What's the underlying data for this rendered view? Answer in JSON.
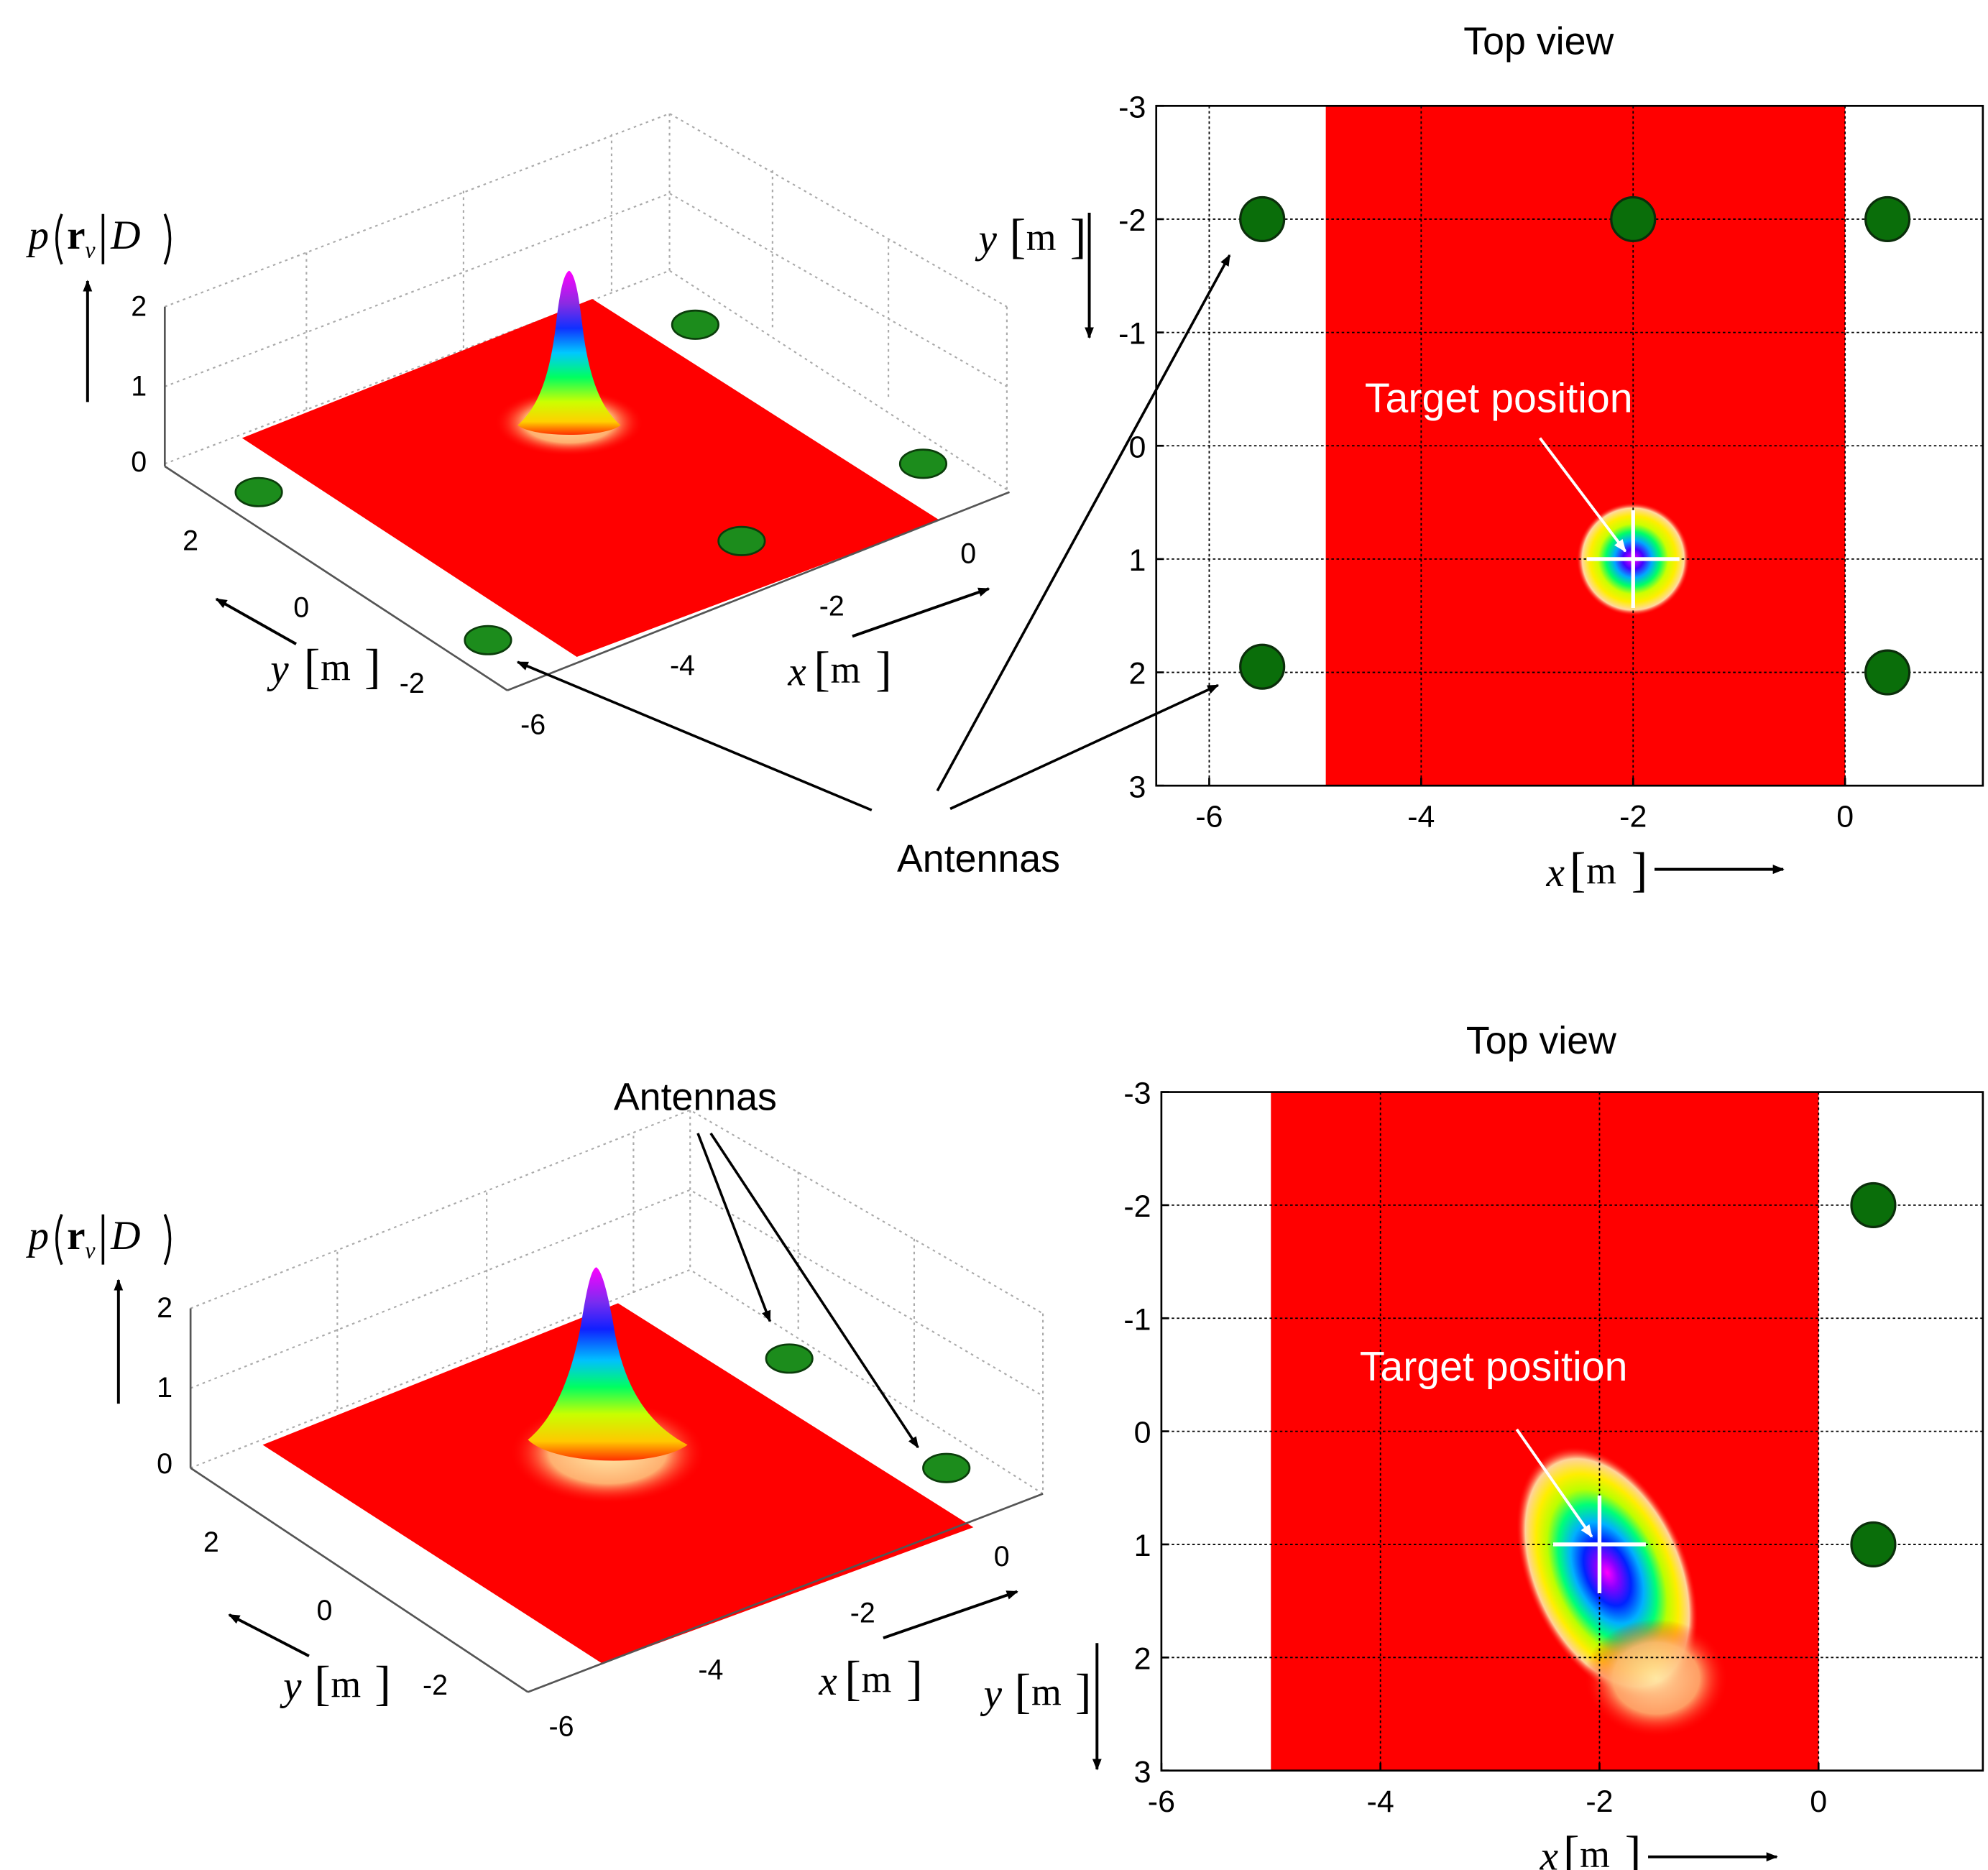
{
  "colors": {
    "plane": "#ff0000",
    "antenna_fill": "#0a6e0a",
    "antenna_fill_3d": "#1c8c1c",
    "grid": "#000000",
    "axis": "#000000",
    "crosshair": "#ffffff"
  },
  "labels": {
    "antennas": "Antennas",
    "target_position": "Target position",
    "top_view": "Top view",
    "p_prefix": "p",
    "p_bold": "r",
    "p_sub": "v",
    "p_given": "D",
    "x_var": "x",
    "y_var": "y",
    "unit": "m"
  },
  "chart_data": [
    {
      "type": "surface3d",
      "panel": "top-left",
      "zlabel": "p(rv|D)",
      "xlabel": "x [m]",
      "ylabel": "y [m]",
      "z_ticks": [
        "0",
        "1",
        "2"
      ],
      "x_ticks": [
        "-6",
        "-4",
        "-2",
        "0"
      ],
      "y_ticks": [
        "2",
        "0",
        "-2"
      ],
      "xlim": [
        -6,
        0
      ],
      "ylim": [
        -3,
        3
      ],
      "zlim": [
        0,
        2
      ],
      "peak": {
        "x": -2,
        "y": 1,
        "z": 2
      },
      "antennas": [
        {
          "x": -5.5,
          "y": -2
        },
        {
          "x": -2,
          "y": -2
        },
        {
          "x": 0.4,
          "y": -2
        },
        {
          "x": -5.5,
          "y": 2
        },
        {
          "x": 0.4,
          "y": 2
        }
      ]
    },
    {
      "type": "heatmap",
      "panel": "top-right",
      "title": "Top view",
      "xlabel": "x [m]",
      "ylabel": "y [m]",
      "xlim": [
        -6.5,
        1.3
      ],
      "ylim": [
        -3,
        3
      ],
      "x_ticks": [
        -6,
        -4,
        -2,
        0
      ],
      "y_ticks": [
        -3,
        -2,
        -1,
        0,
        1,
        2,
        3
      ],
      "y_tick_labels": [
        "-3",
        "-2",
        "-1",
        "0",
        "1",
        "2",
        "3"
      ],
      "x_tick_labels": [
        "-6",
        "-4",
        "-2",
        "0"
      ],
      "region": {
        "x": [
          -4.9,
          0
        ],
        "y": [
          -3,
          3
        ]
      },
      "target": {
        "x": -2,
        "y": 1
      },
      "antennas": [
        {
          "x": -5.5,
          "y": -2
        },
        {
          "x": -2,
          "y": -2
        },
        {
          "x": 0.4,
          "y": -2
        },
        {
          "x": -5.5,
          "y": 1.95
        },
        {
          "x": 0.4,
          "y": 2
        }
      ]
    },
    {
      "type": "surface3d",
      "panel": "bottom-left",
      "zlabel": "p(rv|D)",
      "xlabel": "x [m]",
      "ylabel": "y [m]",
      "z_ticks": [
        "0",
        "1",
        "2"
      ],
      "x_ticks": [
        "-6",
        "-4",
        "-2",
        "0"
      ],
      "y_ticks": [
        "2",
        "0",
        "-2"
      ],
      "xlim": [
        -6,
        0
      ],
      "ylim": [
        -3,
        3
      ],
      "zlim": [
        0,
        2
      ],
      "peak": {
        "x": -2,
        "y": 1,
        "z": 2
      },
      "antennas": [
        {
          "x": 0.5,
          "y": -2
        },
        {
          "x": 0.5,
          "y": 1
        }
      ]
    },
    {
      "type": "heatmap",
      "panel": "bottom-right",
      "title": "Top view",
      "xlabel": "x [m]",
      "ylabel": "y [m]",
      "xlim": [
        -6,
        1.5
      ],
      "ylim": [
        -3,
        3
      ],
      "x_ticks": [
        -6,
        -4,
        -2,
        0
      ],
      "y_ticks": [
        -3,
        -2,
        -1,
        0,
        1,
        2,
        3
      ],
      "y_tick_labels": [
        "-3",
        "-2",
        "-1",
        "0",
        "1",
        "2",
        "3"
      ],
      "x_tick_labels": [
        "-6",
        "-4",
        "-2",
        "0"
      ],
      "region": {
        "x": [
          -5,
          0
        ],
        "y": [
          -3,
          3
        ]
      },
      "target": {
        "x": -2,
        "y": 1
      },
      "antennas": [
        {
          "x": 0.5,
          "y": -2
        },
        {
          "x": 0.5,
          "y": 1
        }
      ]
    }
  ]
}
